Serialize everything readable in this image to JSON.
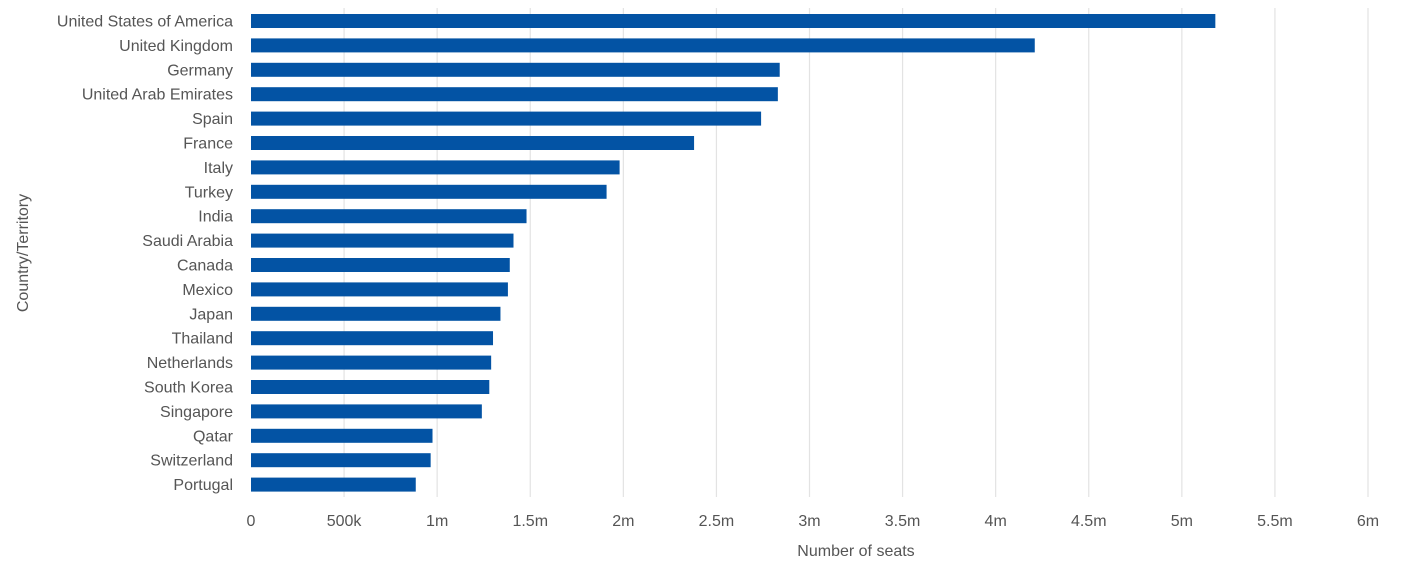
{
  "chart_data": {
    "type": "bar",
    "orientation": "horizontal",
    "categories": [
      "United States of America",
      "United Kingdom",
      "Germany",
      "United Arab Emirates",
      "Spain",
      "France",
      "Italy",
      "Turkey",
      "India",
      "Saudi Arabia",
      "Canada",
      "Mexico",
      "Japan",
      "Thailand",
      "Netherlands",
      "South Korea",
      "Singapore",
      "Qatar",
      "Switzerland",
      "Portugal"
    ],
    "values": [
      5180000,
      4210000,
      2840000,
      2830000,
      2740000,
      2380000,
      1980000,
      1910000,
      1480000,
      1410000,
      1390000,
      1380000,
      1340000,
      1300000,
      1290000,
      1280000,
      1240000,
      975000,
      965000,
      885000
    ],
    "xlim": [
      0,
      6000000
    ],
    "xticks": [
      0,
      500000,
      1000000,
      1500000,
      2000000,
      2500000,
      3000000,
      3500000,
      4000000,
      4500000,
      5000000,
      5500000,
      6000000
    ],
    "xtick_labels": [
      "0",
      "500k",
      "1m",
      "1.5m",
      "2m",
      "2.5m",
      "3m",
      "3.5m",
      "4m",
      "4.5m",
      "5m",
      "5.5m",
      "6m"
    ],
    "xlabel": "Number of seats",
    "ylabel": "Country/Territory",
    "grid": "vertical",
    "bar_color": "#0353a4",
    "grid_color": "#e3e3e3",
    "text_color": "#555555"
  }
}
